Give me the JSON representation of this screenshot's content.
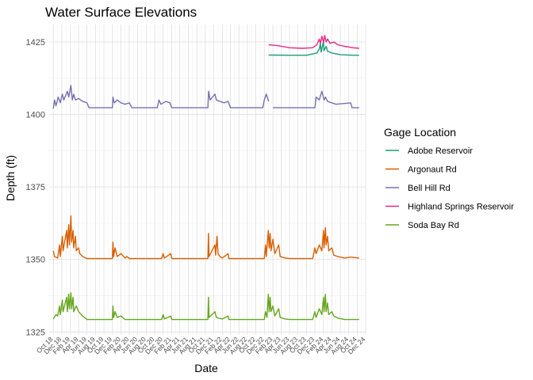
{
  "chart_data": {
    "type": "line",
    "title": "Water Surface Elevations",
    "xlabel": "Date",
    "ylabel": "Depth (ft)",
    "ylim": [
      1324,
      1431
    ],
    "xlim": [
      "2018-09-01",
      "2024-12-01"
    ],
    "yticks": [
      1325,
      1350,
      1375,
      1400,
      1425
    ],
    "xticks": [
      "Oct 18",
      "Dec 18",
      "Feb 19",
      "Apr 19",
      "Jun 19",
      "Aug 19",
      "Oct 19",
      "Dec 19",
      "Feb 20",
      "Apr 20",
      "Jun 20",
      "Aug 20",
      "Oct 20",
      "Dec 20",
      "Feb 21",
      "Apr 21",
      "Jun 21",
      "Aug 21",
      "Oct 21",
      "Dec 21",
      "Feb 22",
      "Apr 22",
      "Jun 22",
      "Aug 22",
      "Oct 22",
      "Dec 22",
      "Feb 23",
      "Apr 23",
      "Jun 23",
      "Aug 23",
      "Oct 23",
      "Dec 23",
      "Feb 24",
      "Apr 24",
      "Jun 24",
      "Aug 24",
      "Oct 24",
      "Dec 24"
    ],
    "grid": true,
    "legend": {
      "title": "Gage Location",
      "position": "right"
    },
    "series": [
      {
        "name": "Adobe Reservoir",
        "color": "#1b9e77",
        "points": [
          [
            "2023-01-01",
            1420.5
          ],
          [
            "2023-06-01",
            1420.4
          ],
          [
            "2023-10-01",
            1420.4
          ],
          [
            "2023-12-15",
            1421.2
          ],
          [
            "2024-01-01",
            1422.5
          ],
          [
            "2024-01-10",
            1424.5
          ],
          [
            "2024-01-15",
            1421.5
          ],
          [
            "2024-02-01",
            1425.2
          ],
          [
            "2024-02-05",
            1422
          ],
          [
            "2024-02-20",
            1423.5
          ],
          [
            "2024-03-01",
            1421.8
          ],
          [
            "2024-04-01",
            1421.2
          ],
          [
            "2024-06-01",
            1420.6
          ],
          [
            "2024-09-01",
            1420.4
          ],
          [
            "2024-10-15",
            1420.4
          ]
        ]
      },
      {
        "name": "Argonaut Rd",
        "color": "#d95f02",
        "points": [
          [
            "2018-10-01",
            1353
          ],
          [
            "2018-10-10",
            1351
          ],
          [
            "2018-11-01",
            1350.5
          ],
          [
            "2018-11-15",
            1355
          ],
          [
            "2018-11-20",
            1351
          ],
          [
            "2018-12-05",
            1358
          ],
          [
            "2018-12-10",
            1353
          ],
          [
            "2019-01-05",
            1360
          ],
          [
            "2019-01-10",
            1354
          ],
          [
            "2019-01-20",
            1362
          ],
          [
            "2019-01-25",
            1355
          ],
          [
            "2019-02-05",
            1365
          ],
          [
            "2019-02-10",
            1356
          ],
          [
            "2019-02-20",
            1360
          ],
          [
            "2019-02-25",
            1354
          ],
          [
            "2019-03-10",
            1358
          ],
          [
            "2019-03-15",
            1353
          ],
          [
            "2019-04-01",
            1354
          ],
          [
            "2019-04-10",
            1352
          ],
          [
            "2019-05-01",
            1351
          ],
          [
            "2019-06-01",
            1350.3
          ],
          [
            "2019-12-01",
            1350.3
          ],
          [
            "2019-12-05",
            1356
          ],
          [
            "2019-12-10",
            1351
          ],
          [
            "2019-12-20",
            1354
          ],
          [
            "2020-01-05",
            1351
          ],
          [
            "2020-02-01",
            1352
          ],
          [
            "2020-03-01",
            1350.5
          ],
          [
            "2020-03-15",
            1351
          ],
          [
            "2020-04-01",
            1350.3
          ],
          [
            "2020-11-20",
            1350.3
          ],
          [
            "2020-12-01",
            1352
          ],
          [
            "2020-12-10",
            1350.5
          ],
          [
            "2021-01-25",
            1352
          ],
          [
            "2021-02-01",
            1350.3
          ],
          [
            "2021-10-20",
            1350.3
          ],
          [
            "2021-10-24",
            1359
          ],
          [
            "2021-10-28",
            1351
          ],
          [
            "2021-12-10",
            1355
          ],
          [
            "2021-12-15",
            1351.5
          ],
          [
            "2021-12-25",
            1358
          ],
          [
            "2022-01-01",
            1352
          ],
          [
            "2022-01-15",
            1351
          ],
          [
            "2022-02-01",
            1350.5
          ],
          [
            "2022-03-15",
            1352
          ],
          [
            "2022-03-20",
            1350.3
          ],
          [
            "2022-12-01",
            1350.3
          ],
          [
            "2022-12-10",
            1355
          ],
          [
            "2022-12-15",
            1351
          ],
          [
            "2022-12-30",
            1360
          ],
          [
            "2023-01-05",
            1354
          ],
          [
            "2023-01-12",
            1359
          ],
          [
            "2023-01-18",
            1353
          ],
          [
            "2023-02-01",
            1357
          ],
          [
            "2023-02-15",
            1352
          ],
          [
            "2023-03-15",
            1355
          ],
          [
            "2023-03-25",
            1351
          ],
          [
            "2023-05-01",
            1350.5
          ],
          [
            "2023-06-01",
            1350.3
          ],
          [
            "2023-11-15",
            1350.3
          ],
          [
            "2023-12-01",
            1354
          ],
          [
            "2023-12-10",
            1352
          ],
          [
            "2024-01-01",
            1355
          ],
          [
            "2024-01-20",
            1353
          ],
          [
            "2024-02-01",
            1360
          ],
          [
            "2024-02-05",
            1354
          ],
          [
            "2024-02-15",
            1361
          ],
          [
            "2024-02-20",
            1355
          ],
          [
            "2024-03-01",
            1358
          ],
          [
            "2024-03-10",
            1353
          ],
          [
            "2024-04-01",
            1354
          ],
          [
            "2024-04-15",
            1351.5
          ],
          [
            "2024-05-15",
            1351
          ],
          [
            "2024-07-01",
            1350.5
          ],
          [
            "2024-08-15",
            1350.8
          ],
          [
            "2024-10-15",
            1350.5
          ]
        ]
      },
      {
        "name": "Bell Hill Rd",
        "color": "#7570b3",
        "gap_after": [
          "2023-01-01",
          "2023-02-01"
        ],
        "points": [
          [
            "2018-10-01",
            1402
          ],
          [
            "2018-10-10",
            1405
          ],
          [
            "2018-10-20",
            1403
          ],
          [
            "2018-11-05",
            1406
          ],
          [
            "2018-11-20",
            1404
          ],
          [
            "2018-12-05",
            1407
          ],
          [
            "2018-12-15",
            1405
          ],
          [
            "2019-01-10",
            1408
          ],
          [
            "2019-01-20",
            1406
          ],
          [
            "2019-02-05",
            1410
          ],
          [
            "2019-02-15",
            1405
          ],
          [
            "2019-02-25",
            1407
          ],
          [
            "2019-03-10",
            1405
          ],
          [
            "2019-04-01",
            1405.5
          ],
          [
            "2019-05-01",
            1404.5
          ],
          [
            "2019-06-01",
            1404
          ],
          [
            "2019-06-15",
            1402.3
          ],
          [
            "2019-12-01",
            1402.3
          ],
          [
            "2019-12-05",
            1406
          ],
          [
            "2019-12-15",
            1404
          ],
          [
            "2020-01-05",
            1405
          ],
          [
            "2020-02-01",
            1404
          ],
          [
            "2020-03-01",
            1403.5
          ],
          [
            "2020-04-01",
            1404
          ],
          [
            "2020-04-20",
            1402.3
          ],
          [
            "2020-10-20",
            1402.3
          ],
          [
            "2020-11-01",
            1405
          ],
          [
            "2020-11-15",
            1403.5
          ],
          [
            "2020-12-20",
            1404.5
          ],
          [
            "2021-01-20",
            1404
          ],
          [
            "2021-02-01",
            1402.3
          ],
          [
            "2021-10-20",
            1402.3
          ],
          [
            "2021-10-25",
            1408
          ],
          [
            "2021-11-05",
            1405
          ],
          [
            "2021-12-10",
            1407
          ],
          [
            "2021-12-20",
            1405
          ],
          [
            "2022-01-15",
            1404.5
          ],
          [
            "2022-02-15",
            1404
          ],
          [
            "2022-03-15",
            1404.5
          ],
          [
            "2022-04-01",
            1402.3
          ],
          [
            "2022-11-20",
            1402.3
          ],
          [
            "2022-12-01",
            1405
          ],
          [
            "2022-12-15",
            1407
          ],
          [
            "2023-01-01",
            1404.5
          ],
          [
            "2023-02-01",
            1402.3
          ],
          [
            "2023-03-01",
            1402.3
          ],
          [
            "2023-12-01",
            1402.3
          ],
          [
            "2023-12-10",
            1406
          ],
          [
            "2024-01-01",
            1405
          ],
          [
            "2024-01-20",
            1408
          ],
          [
            "2024-02-05",
            1405
          ],
          [
            "2024-02-15",
            1406
          ],
          [
            "2024-03-01",
            1404.5
          ],
          [
            "2024-04-01",
            1404
          ],
          [
            "2024-05-01",
            1403.5
          ],
          [
            "2024-08-15",
            1404
          ],
          [
            "2024-08-25",
            1402.3
          ],
          [
            "2024-10-15",
            1402.3
          ]
        ]
      },
      {
        "name": "Highland Springs Reservoir",
        "color": "#e7298a",
        "points": [
          [
            "2023-01-01",
            1424
          ],
          [
            "2023-03-01",
            1423.8
          ],
          [
            "2023-06-01",
            1423
          ],
          [
            "2023-09-01",
            1422.8
          ],
          [
            "2023-11-15",
            1423
          ],
          [
            "2023-12-15",
            1424
          ],
          [
            "2024-01-01",
            1426
          ],
          [
            "2024-01-10",
            1424.5
          ],
          [
            "2024-01-20",
            1427
          ],
          [
            "2024-02-01",
            1424.8
          ],
          [
            "2024-02-10",
            1427.2
          ],
          [
            "2024-02-20",
            1425
          ],
          [
            "2024-03-01",
            1426
          ],
          [
            "2024-03-20",
            1424.5
          ],
          [
            "2024-04-15",
            1425
          ],
          [
            "2024-05-15",
            1424
          ],
          [
            "2024-07-01",
            1423.5
          ],
          [
            "2024-09-01",
            1423
          ],
          [
            "2024-10-15",
            1422.8
          ]
        ]
      },
      {
        "name": "Soda Bay Rd",
        "color": "#66a61e",
        "points": [
          [
            "2018-10-01",
            1329.5
          ],
          [
            "2018-10-20",
            1331
          ],
          [
            "2018-11-01",
            1330.5
          ],
          [
            "2018-11-15",
            1334
          ],
          [
            "2018-11-20",
            1331
          ],
          [
            "2018-12-05",
            1336
          ],
          [
            "2018-12-10",
            1332
          ],
          [
            "2019-01-05",
            1337
          ],
          [
            "2019-01-10",
            1332
          ],
          [
            "2019-01-20",
            1338
          ],
          [
            "2019-01-25",
            1333
          ],
          [
            "2019-02-05",
            1338.5
          ],
          [
            "2019-02-10",
            1333
          ],
          [
            "2019-02-20",
            1337
          ],
          [
            "2019-02-25",
            1332
          ],
          [
            "2019-03-15",
            1334
          ],
          [
            "2019-04-01",
            1332
          ],
          [
            "2019-05-01",
            1330.5
          ],
          [
            "2019-06-01",
            1329.3
          ],
          [
            "2019-12-01",
            1329.3
          ],
          [
            "2019-12-05",
            1334
          ],
          [
            "2019-12-10",
            1330
          ],
          [
            "2019-12-20",
            1332
          ],
          [
            "2020-01-05",
            1330
          ],
          [
            "2020-02-01",
            1330.5
          ],
          [
            "2020-03-01",
            1329.3
          ],
          [
            "2020-11-20",
            1329.3
          ],
          [
            "2020-12-01",
            1331
          ],
          [
            "2020-12-10",
            1329.5
          ],
          [
            "2021-01-25",
            1330.5
          ],
          [
            "2021-02-01",
            1329.3
          ],
          [
            "2021-10-20",
            1329.3
          ],
          [
            "2021-10-24",
            1337
          ],
          [
            "2021-10-28",
            1330
          ],
          [
            "2021-12-10",
            1332
          ],
          [
            "2021-12-20",
            1330
          ],
          [
            "2022-02-01",
            1329.5
          ],
          [
            "2022-03-15",
            1330.5
          ],
          [
            "2022-03-20",
            1329.3
          ],
          [
            "2022-12-01",
            1329.3
          ],
          [
            "2022-12-10",
            1332
          ],
          [
            "2022-12-20",
            1330
          ],
          [
            "2022-12-30",
            1338
          ],
          [
            "2023-01-05",
            1332
          ],
          [
            "2023-01-12",
            1337
          ],
          [
            "2023-01-18",
            1332
          ],
          [
            "2023-02-01",
            1334
          ],
          [
            "2023-02-15",
            1330.5
          ],
          [
            "2023-03-15",
            1333
          ],
          [
            "2023-03-25",
            1330
          ],
          [
            "2023-05-01",
            1329.5
          ],
          [
            "2023-06-01",
            1329.3
          ],
          [
            "2023-11-15",
            1329.3
          ],
          [
            "2023-12-01",
            1332
          ],
          [
            "2023-12-10",
            1330
          ],
          [
            "2024-01-01",
            1333
          ],
          [
            "2024-01-20",
            1331
          ],
          [
            "2024-02-01",
            1337
          ],
          [
            "2024-02-05",
            1332
          ],
          [
            "2024-02-15",
            1338
          ],
          [
            "2024-02-20",
            1332
          ],
          [
            "2024-03-01",
            1335
          ],
          [
            "2024-03-10",
            1331
          ],
          [
            "2024-04-01",
            1332
          ],
          [
            "2024-04-15",
            1330.5
          ],
          [
            "2024-05-15",
            1329.8
          ],
          [
            "2024-07-01",
            1329.3
          ],
          [
            "2024-10-15",
            1329.3
          ]
        ]
      }
    ]
  }
}
